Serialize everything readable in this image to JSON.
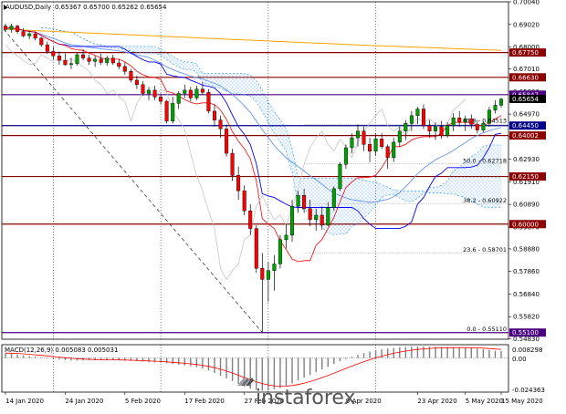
{
  "header": {
    "symbol": "AUDUSD,Daily",
    "ohlc": "0.65367 0.65700 0.65262 0.65654"
  },
  "macd_label": "MACD(12,26,9) 0.005083 0.005031",
  "macd_axis": [
    "0.008298",
    "0.00",
    "-0.024363"
  ],
  "watermark": {
    "text": "instaforex"
  },
  "colors": {
    "bull": "#00a000",
    "bear": "#ff0000",
    "purple": "#4b0082",
    "darkred": "#8b0000",
    "darkblue": "#00008b",
    "kijun": "#0000ff",
    "tenkan": "#ff0000",
    "chikou": "#c0c0c0",
    "ma_orange": "#ffa500",
    "ma_blue": "#6495ed",
    "cloud": "#1e90ff"
  },
  "chart_data": {
    "type": "candlestick",
    "title": "AUDUSD,Daily",
    "ylim": [
      0.548,
      0.7004
    ],
    "y_ticks": [
      "0.70040",
      "0.69020",
      "0.68000",
      "0.67010",
      "0.65990",
      "0.64970",
      "0.63950",
      "0.62930",
      "0.61910",
      "0.60890",
      "0.59870",
      "0.58880",
      "0.57860",
      "0.56840",
      "0.55820",
      "0.54830"
    ],
    "x_labels": [
      "14 Jan 2020",
      "24 Jan 2020",
      "5 Feb 2020",
      "17 Feb 2020",
      "27 Feb 2020",
      "9 Apr 2020",
      "23 Apr 2020",
      "5 May 2020",
      "15 May 2020"
    ],
    "price_tags": [
      {
        "label": "0.67750",
        "value": 0.6775,
        "color": "#8b0000"
      },
      {
        "label": "0.66630",
        "value": 0.6663,
        "color": "#8b0000"
      },
      {
        "label": "0.65847",
        "value": 0.65847,
        "color": "#4b0082"
      },
      {
        "label": "0.65654",
        "value": 0.65654,
        "color": "#000000"
      },
      {
        "label": "0.64450",
        "value": 0.6445,
        "color": "#00008b"
      },
      {
        "label": "0.64002",
        "value": 0.64002,
        "color": "#8b0000"
      },
      {
        "label": "0.62150",
        "value": 0.6215,
        "color": "#8b0000"
      },
      {
        "label": "0.60000",
        "value": 0.6,
        "color": "#8b0000"
      },
      {
        "label": "0.55100",
        "value": 0.551,
        "color": "#4b0082"
      }
    ],
    "fib_levels": [
      {
        "label": "61.8 - 0.64513",
        "value": 0.64513
      },
      {
        "label": "50.0 - 0.62718",
        "value": 0.62718
      },
      {
        "label": "38.2 - 0.60922",
        "value": 0.60922
      },
      {
        "label": "23.6 - 0.58701",
        "value": 0.58701
      },
      {
        "label": "0.0 - 0.55110",
        "value": 0.5511
      }
    ],
    "candles": [
      [
        0.6895,
        0.6905,
        0.687,
        0.688
      ],
      [
        0.688,
        0.6905,
        0.6865,
        0.6895
      ],
      [
        0.6895,
        0.69,
        0.686,
        0.687
      ],
      [
        0.687,
        0.6885,
        0.6845,
        0.685
      ],
      [
        0.685,
        0.6875,
        0.6835,
        0.686
      ],
      [
        0.686,
        0.687,
        0.683,
        0.684
      ],
      [
        0.684,
        0.6845,
        0.68,
        0.681
      ],
      [
        0.681,
        0.6825,
        0.677,
        0.678
      ],
      [
        0.678,
        0.68,
        0.6745,
        0.676
      ],
      [
        0.676,
        0.678,
        0.672,
        0.674
      ],
      [
        0.674,
        0.677,
        0.6715,
        0.672
      ],
      [
        0.672,
        0.675,
        0.67,
        0.6725
      ],
      [
        0.6725,
        0.6775,
        0.6715,
        0.6765
      ],
      [
        0.6765,
        0.679,
        0.674,
        0.675
      ],
      [
        0.675,
        0.6765,
        0.672,
        0.6735
      ],
      [
        0.6735,
        0.676,
        0.671,
        0.6745
      ],
      [
        0.6745,
        0.677,
        0.672,
        0.673
      ],
      [
        0.673,
        0.676,
        0.6715,
        0.675
      ],
      [
        0.675,
        0.6765,
        0.672,
        0.6728
      ],
      [
        0.6728,
        0.6745,
        0.67,
        0.6712
      ],
      [
        0.6712,
        0.673,
        0.6675,
        0.669
      ],
      [
        0.669,
        0.67,
        0.664,
        0.665
      ],
      [
        0.665,
        0.667,
        0.661,
        0.663
      ],
      [
        0.663,
        0.6645,
        0.658,
        0.659
      ],
      [
        0.659,
        0.662,
        0.656,
        0.6605
      ],
      [
        0.6605,
        0.6625,
        0.656,
        0.6575
      ],
      [
        0.6575,
        0.659,
        0.654,
        0.6555
      ],
      [
        0.6555,
        0.656,
        0.6455,
        0.6465
      ],
      [
        0.6465,
        0.6575,
        0.6455,
        0.6545
      ],
      [
        0.6545,
        0.66,
        0.652,
        0.659
      ],
      [
        0.659,
        0.663,
        0.657,
        0.6605
      ],
      [
        0.6605,
        0.662,
        0.6555,
        0.657
      ],
      [
        0.657,
        0.6625,
        0.656,
        0.661
      ],
      [
        0.661,
        0.664,
        0.6585,
        0.6595
      ],
      [
        0.6595,
        0.661,
        0.65,
        0.651
      ],
      [
        0.651,
        0.654,
        0.644,
        0.647
      ],
      [
        0.647,
        0.649,
        0.639,
        0.643
      ],
      [
        0.643,
        0.645,
        0.6305,
        0.632
      ],
      [
        0.632,
        0.634,
        0.6195,
        0.622
      ],
      [
        0.622,
        0.626,
        0.611,
        0.615
      ],
      [
        0.615,
        0.6175,
        0.604,
        0.606
      ],
      [
        0.606,
        0.609,
        0.595,
        0.598
      ],
      [
        0.598,
        0.5995,
        0.578,
        0.58
      ],
      [
        0.58,
        0.587,
        0.551,
        0.575
      ],
      [
        0.575,
        0.583,
        0.565,
        0.579
      ],
      [
        0.579,
        0.586,
        0.57,
        0.582
      ],
      [
        0.582,
        0.595,
        0.58,
        0.593
      ],
      [
        0.593,
        0.6,
        0.589,
        0.595
      ],
      [
        0.595,
        0.611,
        0.592,
        0.608
      ],
      [
        0.608,
        0.615,
        0.605,
        0.613
      ],
      [
        0.613,
        0.616,
        0.605,
        0.607
      ],
      [
        0.607,
        0.611,
        0.599,
        0.602
      ],
      [
        0.602,
        0.607,
        0.597,
        0.604
      ],
      [
        0.604,
        0.608,
        0.5975,
        0.5995
      ],
      [
        0.5995,
        0.61,
        0.599,
        0.6075
      ],
      [
        0.6075,
        0.617,
        0.606,
        0.616
      ],
      [
        0.616,
        0.628,
        0.615,
        0.627
      ],
      [
        0.627,
        0.636,
        0.625,
        0.6345
      ],
      [
        0.6345,
        0.641,
        0.632,
        0.639
      ],
      [
        0.639,
        0.645,
        0.635,
        0.642
      ],
      [
        0.642,
        0.644,
        0.633,
        0.636
      ],
      [
        0.636,
        0.639,
        0.628,
        0.633
      ],
      [
        0.633,
        0.641,
        0.631,
        0.6385
      ],
      [
        0.6385,
        0.641,
        0.634,
        0.635
      ],
      [
        0.635,
        0.636,
        0.625,
        0.63
      ],
      [
        0.63,
        0.639,
        0.628,
        0.637
      ],
      [
        0.637,
        0.644,
        0.635,
        0.642
      ],
      [
        0.642,
        0.647,
        0.638,
        0.6455
      ],
      [
        0.6455,
        0.651,
        0.642,
        0.649
      ],
      [
        0.649,
        0.653,
        0.645,
        0.652
      ],
      [
        0.652,
        0.654,
        0.643,
        0.6445
      ],
      [
        0.6445,
        0.647,
        0.639,
        0.642
      ],
      [
        0.642,
        0.646,
        0.638,
        0.644
      ],
      [
        0.644,
        0.6465,
        0.6385,
        0.64
      ],
      [
        0.64,
        0.646,
        0.639,
        0.6445
      ],
      [
        0.6445,
        0.65,
        0.642,
        0.648
      ],
      [
        0.648,
        0.651,
        0.644,
        0.646
      ],
      [
        0.646,
        0.649,
        0.642,
        0.6475
      ],
      [
        0.6475,
        0.6495,
        0.643,
        0.645
      ],
      [
        0.645,
        0.647,
        0.641,
        0.6425
      ],
      [
        0.6425,
        0.6465,
        0.6415,
        0.6455
      ],
      [
        0.6455,
        0.653,
        0.644,
        0.6515
      ],
      [
        0.6515,
        0.656,
        0.65,
        0.6537
      ],
      [
        0.6537,
        0.657,
        0.6526,
        0.6565
      ]
    ],
    "macd_histogram": [
      0.0035,
      0.003,
      0.0025,
      0.0018,
      0.0012,
      0.0008,
      0.0003,
      -0.0002,
      -0.0008,
      -0.0012,
      -0.0016,
      -0.0019,
      -0.002,
      -0.0019,
      -0.0018,
      -0.0018,
      -0.0017,
      -0.0016,
      -0.0016,
      -0.0017,
      -0.0019,
      -0.0022,
      -0.0025,
      -0.0028,
      -0.003,
      -0.0032,
      -0.0035,
      -0.004,
      -0.0045,
      -0.005,
      -0.0055,
      -0.006,
      -0.0068,
      -0.0078,
      -0.0092,
      -0.011,
      -0.013,
      -0.015,
      -0.017,
      -0.019,
      -0.021,
      -0.0225,
      -0.0235,
      -0.024,
      -0.0238,
      -0.023,
      -0.022,
      -0.0205,
      -0.0185,
      -0.0165,
      -0.0145,
      -0.0125,
      -0.0105,
      -0.0085,
      -0.0065,
      -0.0045,
      -0.0025,
      -0.0008,
      0.0008,
      0.0022,
      0.0035,
      0.0045,
      0.0054,
      0.0062,
      0.0068,
      0.0073,
      0.0077,
      0.008,
      0.0082,
      0.0083,
      0.0083,
      0.0082,
      0.0081,
      0.008,
      0.0079,
      0.0078,
      0.0076,
      0.0074,
      0.0072,
      0.0068,
      0.0062,
      0.0058,
      0.0053,
      0.0051
    ]
  }
}
